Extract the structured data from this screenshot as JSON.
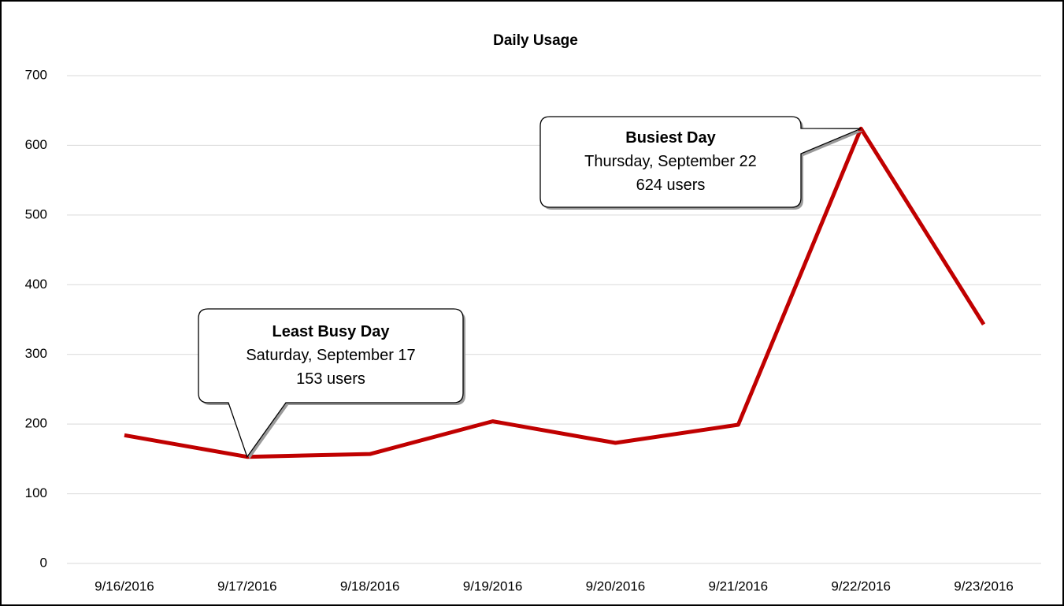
{
  "chart_data": {
    "type": "line",
    "title": "Daily Usage",
    "categories": [
      "9/16/2016",
      "9/17/2016",
      "9/18/2016",
      "9/19/2016",
      "9/20/2016",
      "9/21/2016",
      "9/22/2016",
      "9/23/2016"
    ],
    "series": [
      {
        "name": "Users",
        "color": "#c00000",
        "values": [
          184,
          153,
          157,
          204,
          173,
          199,
          624,
          343
        ]
      }
    ],
    "ylim": [
      0,
      700
    ],
    "yticks": [
      0,
      100,
      200,
      300,
      400,
      500,
      600,
      700
    ],
    "grid": true,
    "legend": false,
    "annotations": [
      {
        "title": "Least Busy Day",
        "lines": [
          "Saturday, September 17",
          "153 users"
        ]
      },
      {
        "title": "Busiest Day",
        "lines": [
          "Thursday, September 22",
          "624 users"
        ]
      }
    ]
  }
}
